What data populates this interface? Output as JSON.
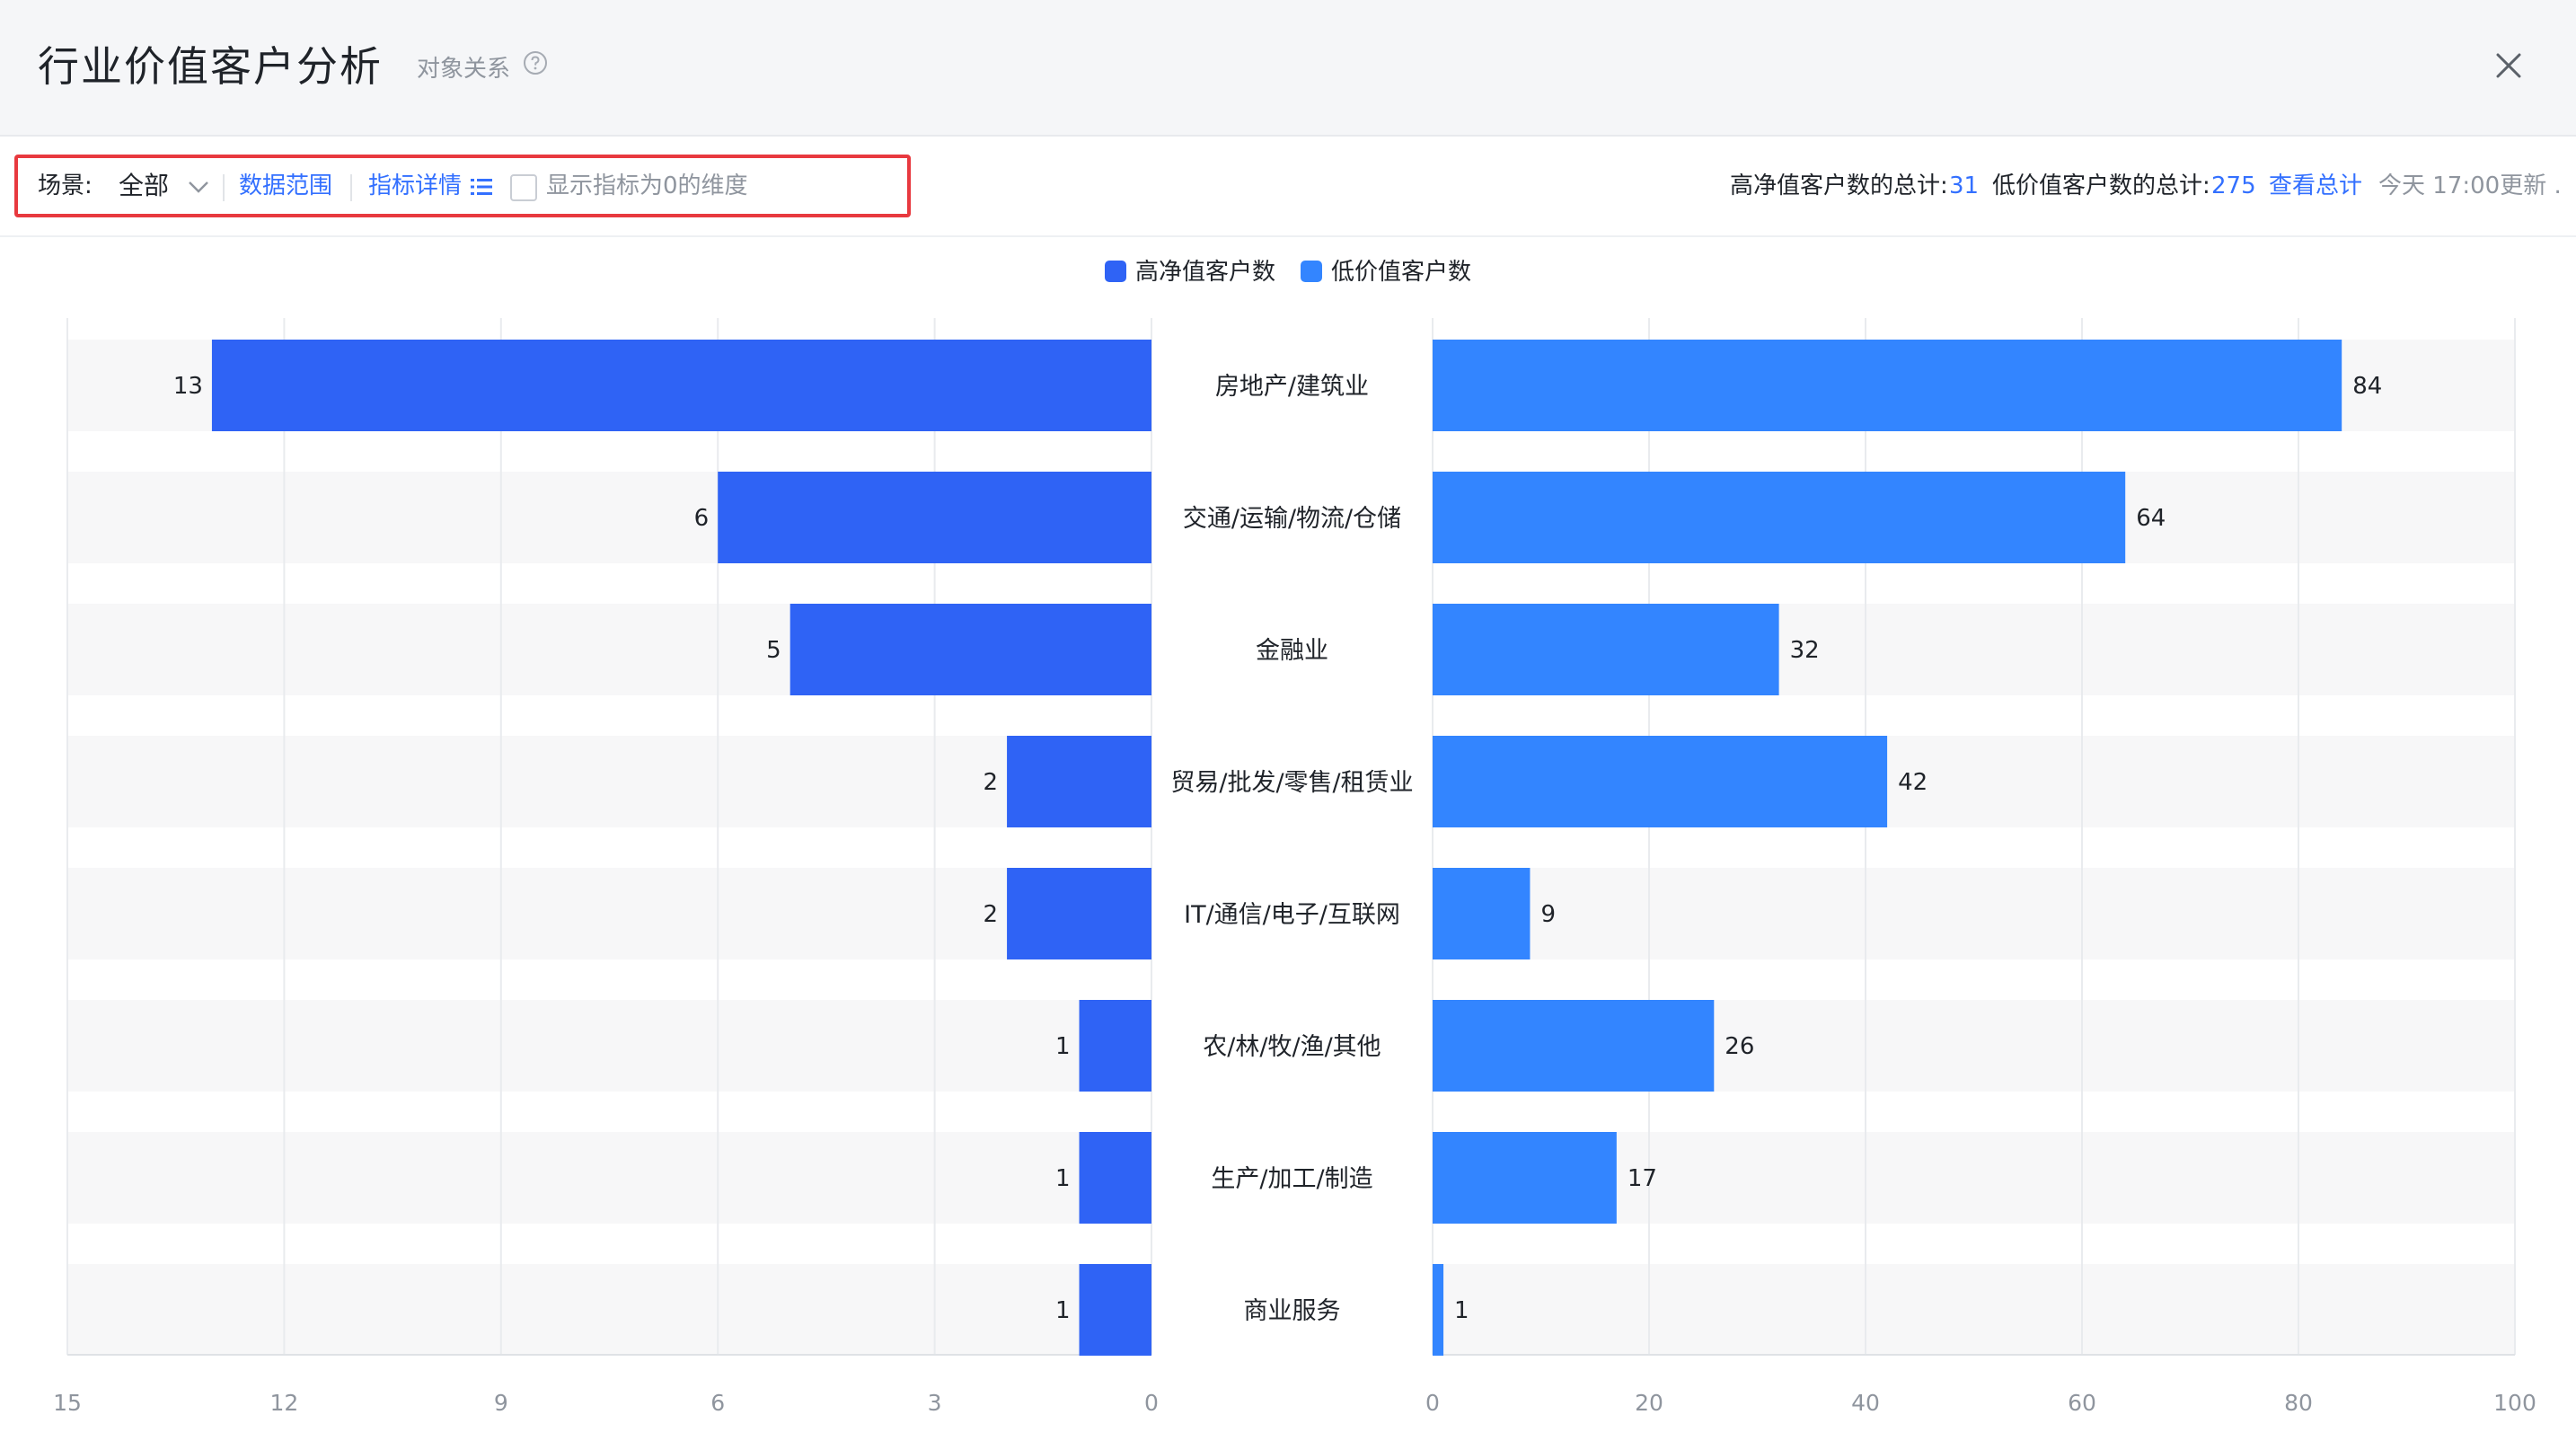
{
  "header": {
    "title": "行业价值客户分析",
    "subtitle": "对象关系",
    "help_icon": "question-circle-icon",
    "close_icon": "close-icon"
  },
  "toolbar": {
    "scene_label": "场景:",
    "scene_value": "全部",
    "data_range_link": "数据范围",
    "metric_detail_link": "指标详情",
    "show_zero_checkbox_label": "显示指标为0的维度",
    "show_zero_checked": false,
    "high_total_label": "高净值客户数的总计:",
    "high_total_value": "31",
    "low_total_label": "低价值客户数的总计:",
    "low_total_value": "275",
    "view_total_link": "查看总计",
    "update_time": "今天 17:00更新 ."
  },
  "colors": {
    "accent": "#3370ff",
    "high_bar": "#2f63f5",
    "low_bar": "#3385ff",
    "row_band": "#f7f7f8",
    "highlight": "#e8393f"
  },
  "chart_data": {
    "type": "bar",
    "orientation": "horizontal-butterfly",
    "categories": [
      "房地产/建筑业",
      "交通/运输/物流/仓储",
      "金融业",
      "贸易/批发/零售/租赁业",
      "IT/通信/电子/互联网",
      "农/林/牧/渔/其他",
      "生产/加工/制造",
      "商业服务"
    ],
    "series": [
      {
        "name": "高净值客户数",
        "side": "left",
        "values": [
          13,
          6,
          5,
          2,
          2,
          1,
          1,
          1
        ],
        "color": "#2f63f5"
      },
      {
        "name": "低价值客户数",
        "side": "right",
        "values": [
          84,
          64,
          32,
          42,
          9,
          26,
          17,
          1
        ],
        "color": "#3385ff"
      }
    ],
    "left_axis": {
      "range": [
        0,
        15
      ],
      "ticks": [
        "15",
        "12",
        "9",
        "6",
        "3",
        "0"
      ]
    },
    "right_axis": {
      "range": [
        0,
        100
      ],
      "ticks": [
        "0",
        "20",
        "40",
        "60",
        "80",
        "100"
      ]
    },
    "legend_position": "top-center",
    "grid": true
  }
}
